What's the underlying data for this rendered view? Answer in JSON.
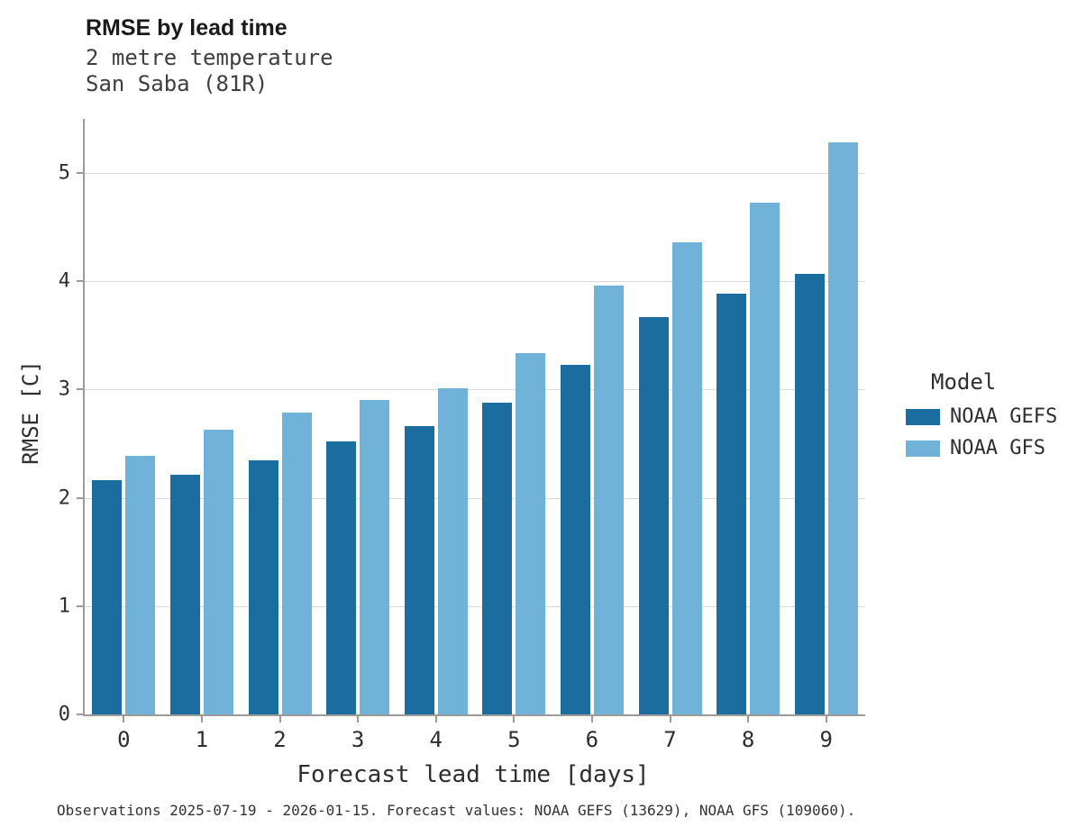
{
  "caption": "Observations 2025-07-19 - 2026-01-15. Forecast values: NOAA GEFS (13629), NOAA GFS (109060).",
  "chart_data": {
    "type": "bar",
    "title": "RMSE by lead time",
    "subtitle": "2 metre temperature",
    "subtitle2": "San Saba (81R)",
    "xlabel": "Forecast lead time [days]",
    "ylabel": "RMSE [C]",
    "legend_title": "Model",
    "legend_position": "right",
    "grid": "horizontal",
    "categories": [
      "0",
      "1",
      "2",
      "3",
      "4",
      "5",
      "6",
      "7",
      "8",
      "9"
    ],
    "yticks": [
      0,
      1,
      2,
      3,
      4,
      5
    ],
    "ylim": [
      0,
      5.5
    ],
    "series": [
      {
        "name": "NOAA GEFS",
        "color": "#1a6d9e",
        "values": [
          2.16,
          2.21,
          2.35,
          2.52,
          2.66,
          2.88,
          3.23,
          3.67,
          3.89,
          4.07
        ]
      },
      {
        "name": "NOAA GFS",
        "color": "#70b2d8",
        "values": [
          2.39,
          2.63,
          2.79,
          2.9,
          3.01,
          3.34,
          3.96,
          4.36,
          4.73,
          5.28
        ]
      }
    ]
  }
}
